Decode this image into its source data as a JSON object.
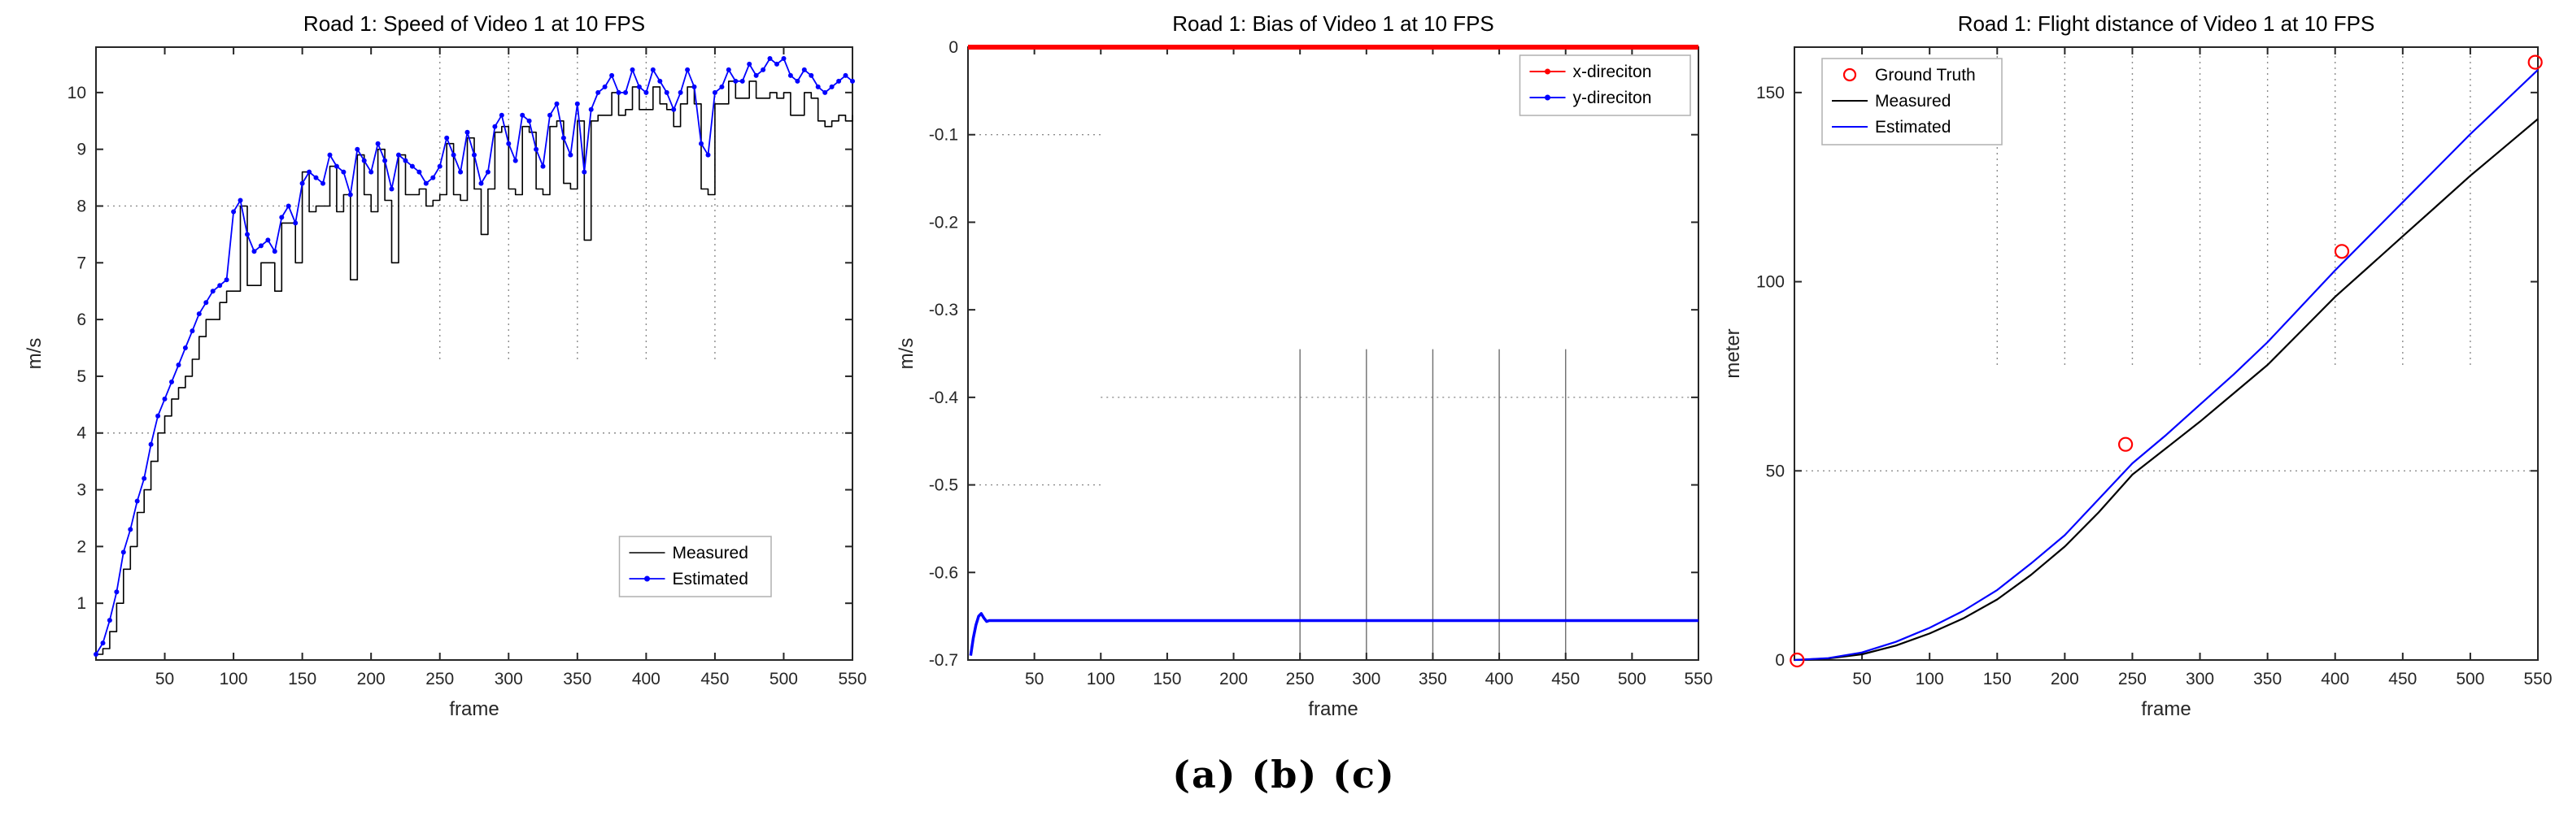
{
  "page": {
    "background": "#ffffff"
  },
  "caption": {
    "text": "(a) (b) (c)"
  },
  "colors": {
    "axis": "#262626",
    "tick_text": "#262626",
    "grid": "#8c8c8c",
    "grid_solid": "#6e6e6e",
    "legend_border": "#b0b0b0",
    "blue": "#0000ff",
    "red": "#ff0000",
    "black": "#000000"
  },
  "chart_data": [
    {
      "name": "speed-chart",
      "type": "line",
      "title": "Road 1: Speed of Video 1 at 10 FPS",
      "xlabel": "frame",
      "ylabel": "m/s",
      "xlim": [
        0,
        550
      ],
      "ylim": [
        0,
        10.8
      ],
      "xticks": [
        50,
        100,
        150,
        200,
        250,
        300,
        350,
        400,
        450,
        500,
        550
      ],
      "ytick_vals": [
        1,
        2,
        3,
        4,
        5,
        6,
        7,
        8,
        9,
        10
      ],
      "ytick_labels": [
        "1",
        "2",
        "3",
        "4",
        "5",
        "6",
        "7",
        "8",
        "9",
        "10"
      ],
      "grid_segments": [
        {
          "axis": "h",
          "at": 4,
          "from": 0,
          "to": 550
        },
        {
          "axis": "h",
          "at": 8,
          "from": 0,
          "to": 550
        },
        {
          "axis": "v",
          "at": 250,
          "from": 5.3,
          "to": 10.8
        },
        {
          "axis": "v",
          "at": 300,
          "from": 5.3,
          "to": 10.8
        },
        {
          "axis": "v",
          "at": 350,
          "from": 5.3,
          "to": 10.8
        },
        {
          "axis": "v",
          "at": 400,
          "from": 5.3,
          "to": 10.8
        },
        {
          "axis": "v",
          "at": 450,
          "from": 5.3,
          "to": 10.8
        }
      ],
      "legend": {
        "position": "bottom-right",
        "entries": [
          {
            "label": "Measured",
            "color": "#000000",
            "marker": "none",
            "lw": 1.6
          },
          {
            "label": "Estimated",
            "color": "#0000ff",
            "marker": "dot",
            "lw": 1.8
          }
        ]
      },
      "series": [
        {
          "name": "Measured",
          "type": "line",
          "step": true,
          "color": "#000000",
          "width": 1.6,
          "marker": "none",
          "x_range": [
            0,
            550,
            5
          ],
          "y": [
            0.1,
            0.2,
            0.5,
            1.0,
            1.6,
            2.0,
            2.6,
            3.0,
            3.5,
            4.0,
            4.3,
            4.6,
            4.8,
            5.0,
            5.3,
            5.7,
            6.0,
            6.0,
            6.3,
            6.5,
            6.5,
            8.0,
            6.6,
            6.6,
            7.0,
            7.0,
            6.5,
            7.7,
            7.7,
            7.0,
            8.6,
            7.9,
            8.0,
            8.0,
            8.7,
            7.9,
            8.2,
            6.7,
            8.9,
            8.2,
            7.9,
            9.0,
            8.1,
            7.0,
            8.9,
            8.2,
            8.2,
            8.3,
            8.0,
            8.1,
            8.2,
            9.1,
            8.2,
            8.1,
            9.2,
            8.3,
            7.5,
            8.3,
            9.3,
            9.4,
            8.3,
            8.2,
            9.4,
            9.3,
            8.3,
            8.2,
            9.4,
            9.5,
            8.4,
            8.3,
            9.5,
            7.4,
            9.5,
            9.6,
            9.6,
            10.0,
            9.6,
            9.7,
            10.1,
            9.7,
            9.7,
            10.1,
            9.8,
            9.7,
            9.4,
            9.8,
            10.1,
            9.8,
            8.3,
            8.2,
            9.8,
            9.8,
            10.2,
            9.9,
            9.9,
            10.2,
            9.9,
            9.9,
            10.0,
            9.9,
            10.0,
            9.6,
            9.6,
            10.0,
            9.9,
            9.5,
            9.4,
            9.5,
            9.6,
            9.5,
            9.6
          ]
        },
        {
          "name": "Estimated",
          "type": "line",
          "color": "#0000ff",
          "width": 1.8,
          "marker": "dot",
          "marker_size": 3,
          "x_range": [
            0,
            550,
            5
          ],
          "y": [
            0.1,
            0.3,
            0.7,
            1.2,
            1.9,
            2.3,
            2.8,
            3.2,
            3.8,
            4.3,
            4.6,
            4.9,
            5.2,
            5.5,
            5.8,
            6.1,
            6.3,
            6.5,
            6.6,
            6.7,
            7.9,
            8.1,
            7.5,
            7.2,
            7.3,
            7.4,
            7.2,
            7.8,
            8.0,
            7.7,
            8.4,
            8.6,
            8.5,
            8.4,
            8.9,
            8.7,
            8.6,
            8.2,
            9.0,
            8.8,
            8.6,
            9.1,
            8.8,
            8.3,
            8.9,
            8.8,
            8.7,
            8.6,
            8.4,
            8.5,
            8.7,
            9.2,
            8.9,
            8.6,
            9.3,
            8.9,
            8.4,
            8.6,
            9.4,
            9.6,
            9.1,
            8.8,
            9.6,
            9.5,
            9.0,
            8.7,
            9.6,
            9.8,
            9.2,
            8.9,
            9.8,
            8.6,
            9.7,
            10.0,
            10.1,
            10.3,
            10.0,
            10.0,
            10.4,
            10.1,
            10.0,
            10.4,
            10.2,
            10.0,
            9.7,
            10.0,
            10.4,
            10.1,
            9.1,
            8.9,
            10.0,
            10.1,
            10.4,
            10.2,
            10.2,
            10.5,
            10.3,
            10.4,
            10.6,
            10.5,
            10.6,
            10.3,
            10.2,
            10.4,
            10.3,
            10.1,
            10.0,
            10.1,
            10.2,
            10.3,
            10.2
          ]
        }
      ]
    },
    {
      "name": "bias-chart",
      "type": "line",
      "title": "Road 1: Bias of Video 1 at 10 FPS",
      "xlabel": "frame",
      "ylabel": "m/s",
      "xlim": [
        0,
        550
      ],
      "ylim": [
        -0.7,
        0
      ],
      "xticks": [
        50,
        100,
        150,
        200,
        250,
        300,
        350,
        400,
        450,
        500,
        550
      ],
      "ytick_vals": [
        0,
        -0.1,
        -0.2,
        -0.3,
        -0.4,
        -0.5,
        -0.6,
        -0.7
      ],
      "ytick_labels": [
        "0",
        "-0.1",
        "-0.2",
        "-0.3",
        "-0.4",
        "-0.5",
        "-0.6",
        "-0.7"
      ],
      "grid_segments": [
        {
          "axis": "h",
          "at": -0.1,
          "from": 0,
          "to": 100
        },
        {
          "axis": "h",
          "at": -0.5,
          "from": 0,
          "to": 100
        },
        {
          "axis": "h",
          "at": -0.4,
          "from": 100,
          "to": 550
        },
        {
          "axis": "v",
          "at": 250,
          "from": -0.7,
          "to": -0.345,
          "style": "solid"
        },
        {
          "axis": "v",
          "at": 300,
          "from": -0.7,
          "to": -0.345,
          "style": "solid"
        },
        {
          "axis": "v",
          "at": 350,
          "from": -0.7,
          "to": -0.345,
          "style": "solid"
        },
        {
          "axis": "v",
          "at": 400,
          "from": -0.7,
          "to": -0.345,
          "style": "solid"
        },
        {
          "axis": "v",
          "at": 450,
          "from": -0.7,
          "to": -0.345,
          "style": "solid"
        }
      ],
      "legend": {
        "position": "top-right",
        "entries": [
          {
            "label": "x-direciton",
            "color": "#ff0000",
            "marker": "dot",
            "lw": 2
          },
          {
            "label": "y-direciton",
            "color": "#0000ff",
            "marker": "dot",
            "lw": 2
          }
        ]
      },
      "series": [
        {
          "name": "x-direciton",
          "type": "line",
          "color": "#ff0000",
          "width": 6,
          "marker": "none",
          "x": [
            0,
            550
          ],
          "y": [
            0,
            0
          ]
        },
        {
          "name": "y-direciton",
          "type": "line",
          "color": "#0000ff",
          "width": 3.5,
          "marker": "none",
          "x": [
            2,
            4,
            6,
            8,
            10,
            12,
            14,
            16,
            20,
            30,
            50,
            100,
            150,
            200,
            250,
            300,
            350,
            400,
            450,
            500,
            550
          ],
          "y": [
            -0.695,
            -0.675,
            -0.66,
            -0.65,
            -0.647,
            -0.652,
            -0.656,
            -0.655,
            -0.655,
            -0.655,
            -0.655,
            -0.655,
            -0.655,
            -0.655,
            -0.655,
            -0.655,
            -0.655,
            -0.655,
            -0.655,
            -0.655,
            -0.655
          ]
        }
      ]
    },
    {
      "name": "distance-chart",
      "type": "line",
      "title": "Road 1: Flight distance of Video 1 at 10 FPS",
      "xlabel": "frame",
      "ylabel": "meter",
      "xlim": [
        0,
        550
      ],
      "ylim": [
        0,
        162
      ],
      "xticks": [
        50,
        100,
        150,
        200,
        250,
        300,
        350,
        400,
        450,
        500,
        550
      ],
      "ytick_vals": [
        0,
        50,
        100,
        150
      ],
      "ytick_labels": [
        "0",
        "50",
        "100",
        "150"
      ],
      "grid_segments": [
        {
          "axis": "h",
          "at": 50,
          "from": 0,
          "to": 550
        },
        {
          "axis": "v",
          "at": 150,
          "from": 78,
          "to": 162
        },
        {
          "axis": "v",
          "at": 200,
          "from": 78,
          "to": 162
        },
        {
          "axis": "v",
          "at": 250,
          "from": 78,
          "to": 162
        },
        {
          "axis": "v",
          "at": 300,
          "from": 78,
          "to": 162
        },
        {
          "axis": "v",
          "at": 350,
          "from": 78,
          "to": 162
        },
        {
          "axis": "v",
          "at": 400,
          "from": 78,
          "to": 162
        },
        {
          "axis": "v",
          "at": 450,
          "from": 78,
          "to": 162
        },
        {
          "axis": "v",
          "at": 500,
          "from": 78,
          "to": 162
        }
      ],
      "legend": {
        "position": "top-left",
        "entries": [
          {
            "label": "Ground Truth",
            "color": "#ff0000",
            "marker": "circle",
            "line": false
          },
          {
            "label": "Measured",
            "color": "#000000",
            "marker": "none",
            "lw": 2
          },
          {
            "label": "Estimated",
            "color": "#0000ff",
            "marker": "none",
            "lw": 2
          }
        ]
      },
      "series": [
        {
          "name": "Measured",
          "type": "line",
          "color": "#000000",
          "width": 2.2,
          "marker": "none",
          "x_range": [
            0,
            550,
            25
          ],
          "y": [
            0,
            0.4,
            1.5,
            3.8,
            7,
            11,
            16,
            22.5,
            30,
            39,
            49,
            56,
            63,
            70.5,
            78,
            87,
            96,
            104,
            112,
            120,
            128,
            135.5,
            143
          ]
        },
        {
          "name": "Estimated",
          "type": "line",
          "color": "#0000ff",
          "width": 2.2,
          "marker": "none",
          "x_range": [
            0,
            550,
            25
          ],
          "y": [
            0,
            0.5,
            2,
            4.8,
            8.5,
            13,
            18.5,
            25.5,
            33,
            42.5,
            52,
            59.5,
            67.5,
            75.5,
            84,
            93.5,
            103,
            112,
            121,
            130,
            139,
            147.5,
            156
          ]
        },
        {
          "name": "Ground Truth",
          "type": "scatter",
          "color": "#ff0000",
          "marker": "circle",
          "marker_size": 8,
          "x": [
            2,
            245,
            405,
            548
          ],
          "y": [
            0,
            57,
            108,
            158
          ]
        }
      ]
    }
  ]
}
